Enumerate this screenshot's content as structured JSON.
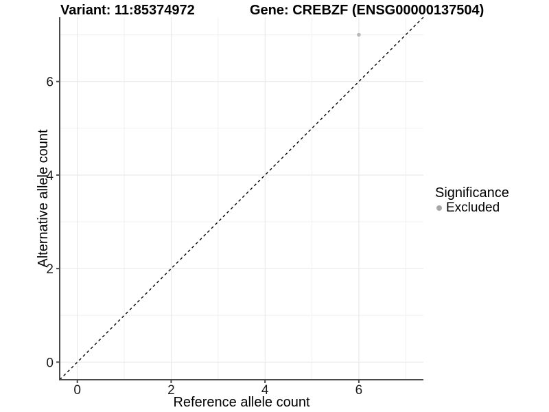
{
  "titles": {
    "variant": "Variant: 11:85374972",
    "gene": "Gene: CREBZF (ENSG00000137504)"
  },
  "chart_data": {
    "type": "scatter",
    "title_left": "Variant: 11:85374972",
    "title_right": "Gene: CREBZF (ENSG00000137504)",
    "xlabel": "Reference allele count",
    "ylabel": "Alternative allele count",
    "x_ticks": [
      0,
      2,
      4,
      6
    ],
    "y_ticks": [
      0,
      2,
      4,
      6
    ],
    "x_minor_gridlines": [
      1,
      3,
      5,
      7
    ],
    "y_minor_gridlines": [
      1,
      3,
      5,
      7
    ],
    "xlim": [
      -0.376,
      7.376
    ],
    "ylim": [
      -0.376,
      7.376
    ],
    "grid": true,
    "points": [
      {
        "x": 6,
        "y": 7,
        "series": "Excluded"
      }
    ],
    "reference_line": {
      "type": "identity",
      "style": "dashed",
      "label": "y = x"
    },
    "legend": {
      "title": "Significance",
      "position": "right",
      "entries": [
        {
          "label": "Excluded",
          "color": "#b3b3b3"
        }
      ]
    }
  },
  "colors": {
    "point": "#b9b9b9",
    "legend_dot": "#a6a6a6",
    "grid_major": "#e6e6e6",
    "grid_minor": "#f0f0f0",
    "axis_line": "#4a4a4a",
    "tick_text": "#1a1a1a",
    "dashed_line": "#000000",
    "background": "#ffffff"
  }
}
